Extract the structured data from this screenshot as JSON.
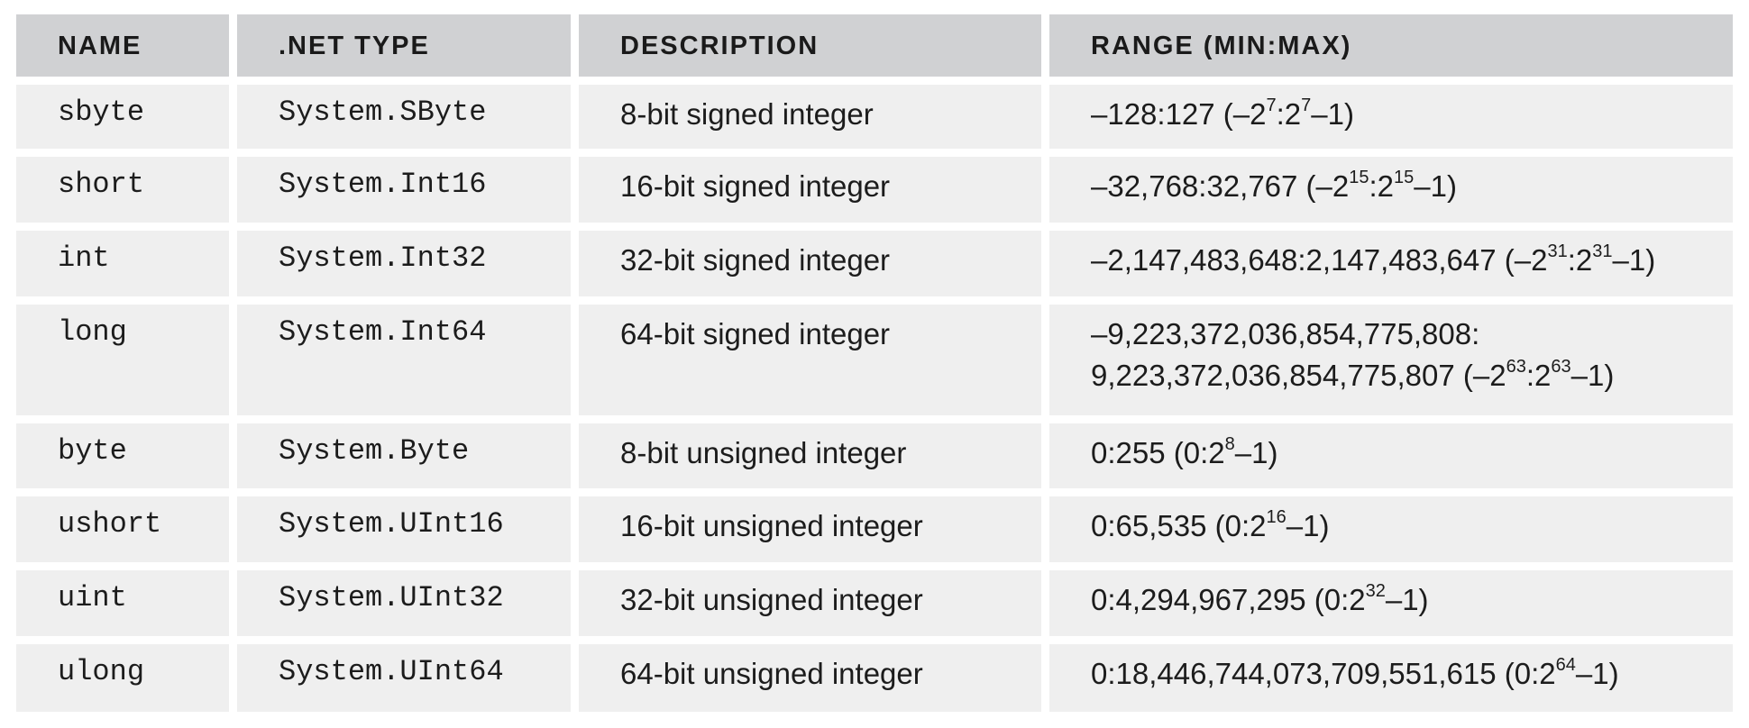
{
  "table": {
    "headers": [
      "NAME",
      ".NET TYPE",
      "DESCRIPTION",
      "RANGE (MIN:MAX)"
    ],
    "rows": [
      {
        "name": "sbyte",
        "net_type": "System.SByte",
        "description": "8-bit signed integer",
        "range": [
          "–128:127 (–2",
          "7",
          ":2",
          "7",
          "–1)"
        ]
      },
      {
        "name": "short",
        "net_type": "System.Int16",
        "description": "16-bit signed integer",
        "range": [
          "–32,768:32,767 (–2",
          "15",
          ":2",
          "15",
          "–1)"
        ]
      },
      {
        "name": "int",
        "net_type": "System.Int32",
        "description": "32-bit signed integer",
        "range": [
          "–2,147,483,648:2,147,483,647 (–2",
          "31",
          ":2",
          "31",
          "–1)"
        ]
      },
      {
        "name": "long",
        "net_type": "System.Int64",
        "description": "64-bit signed integer",
        "range_line1": "–9,223,372,036,854,775,808:",
        "range": [
          "9,223,372,036,854,775,807 (–2",
          "63",
          ":2",
          "63",
          "–1)"
        ]
      },
      {
        "name": "byte",
        "net_type": "System.Byte",
        "description": "8-bit unsigned integer",
        "range": [
          "0:255 (0:2",
          "8",
          "–1)"
        ]
      },
      {
        "name": "ushort",
        "net_type": "System.UInt16",
        "description": "16-bit unsigned integer",
        "range": [
          "0:65,535 (0:2",
          "16",
          "–1)"
        ]
      },
      {
        "name": "uint",
        "net_type": "System.UInt32",
        "description": "32-bit unsigned integer",
        "range": [
          "0:4,294,967,295 (0:2",
          "32",
          "–1)"
        ]
      },
      {
        "name": "ulong",
        "net_type": "System.UInt64",
        "description": "64-bit unsigned integer",
        "range": [
          "0:18,446,744,073,709,551,615 (0:2",
          "64",
          "–1)"
        ]
      }
    ]
  }
}
